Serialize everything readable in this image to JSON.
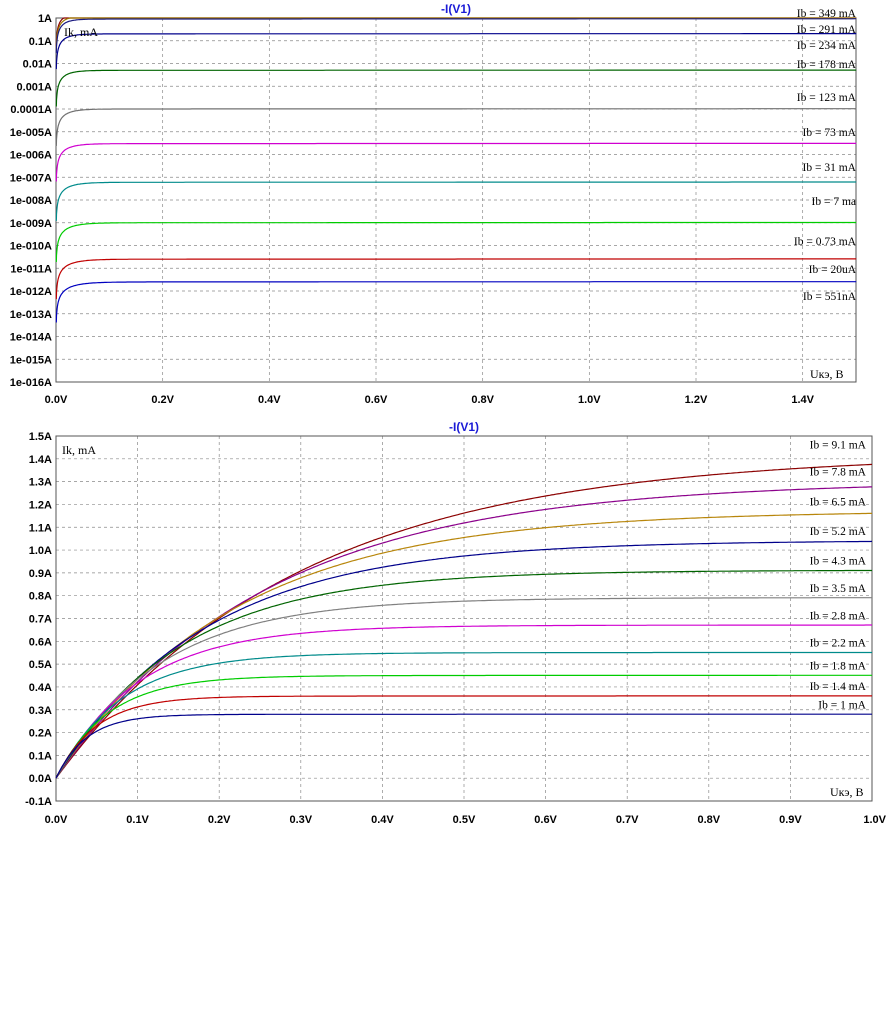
{
  "chart_data": [
    {
      "type": "line",
      "title": "-I(V1)",
      "ylabel": "Ik, mA",
      "xlabel": "Uкэ, В",
      "x_axis": {
        "range": [
          0.0,
          1.5
        ],
        "ticks": [
          0.0,
          0.2,
          0.4,
          0.6,
          0.8,
          1.0,
          1.2,
          1.4
        ],
        "tick_labels": [
          "0.0V",
          "0.2V",
          "0.4V",
          "0.6V",
          "0.8V",
          "1.0V",
          "1.2V",
          "1.4V"
        ]
      },
      "y_axis": {
        "scale": "log",
        "range": [
          1e-16,
          1
        ],
        "tick_labels": [
          "1A",
          "0.1A",
          "0.01A",
          "0.001A",
          "0.0001A",
          "1e-005A",
          "1e-006A",
          "1e-007A",
          "1e-008A",
          "1e-009A",
          "1e-010A",
          "1e-011A",
          "1e-012A",
          "1e-013A",
          "1e-014A",
          "1e-015A",
          "1e-016A"
        ]
      },
      "grid": true,
      "series": [
        {
          "name": "Ib = 349 mA",
          "color": "#8b0000",
          "sat": 1.42
        },
        {
          "name": "Ib = 291 mA",
          "color": "#a07a00",
          "sat": 1.17
        },
        {
          "name": "Ib = 234 mA",
          "color": "#1a1a80",
          "sat": 0.9
        },
        {
          "name": "Ib = 178 mA",
          "color": "#00008b",
          "sat": 0.2
        },
        {
          "name": "Ib = 123 mA",
          "color": "#006400",
          "sat": 0.005
        },
        {
          "name": "Ib = 73 mA",
          "color": "#707070",
          "sat": 0.0001
        },
        {
          "name": "Ib = 31 mA",
          "color": "#d000d0",
          "sat": 3e-06
        },
        {
          "name": "Ib = 7 ma",
          "color": "#008b8b",
          "sat": 6e-08
        },
        {
          "name": "Ib = 0.73 mA",
          "color": "#00cc00",
          "sat": 1e-09
        },
        {
          "name": "Ib = 20uA",
          "color": "#c00000",
          "sat": 2.5e-11
        },
        {
          "name": "Ib = 551nA",
          "color": "#0000c0",
          "sat": 2.5e-12
        }
      ]
    },
    {
      "type": "line",
      "title": "-I(V1)",
      "ylabel": "Ik, mA",
      "xlabel": "Uкэ, В",
      "x_axis": {
        "range": [
          0.0,
          1.0
        ],
        "ticks": [
          0.0,
          0.1,
          0.2,
          0.3,
          0.4,
          0.5,
          0.6,
          0.7,
          0.8,
          0.9,
          1.0
        ],
        "tick_labels": [
          "0.0V",
          "0.1V",
          "0.2V",
          "0.3V",
          "0.4V",
          "0.5V",
          "0.6V",
          "0.7V",
          "0.8V",
          "0.9V",
          "1.0V"
        ]
      },
      "y_axis": {
        "range": [
          -0.1,
          1.5
        ],
        "ticks": [
          1.5,
          1.4,
          1.3,
          1.2,
          1.1,
          1.0,
          0.9,
          0.8,
          0.7,
          0.6,
          0.5,
          0.4,
          0.3,
          0.2,
          0.1,
          0.0,
          -0.1
        ],
        "tick_labels": [
          "1.5A",
          "1.4A",
          "1.3A",
          "1.2A",
          "1.1A",
          "1.0A",
          "0.9A",
          "0.8A",
          "0.7A",
          "0.6A",
          "0.5A",
          "0.4A",
          "0.3A",
          "0.2A",
          "0.1A",
          "0.0A",
          "-0.1A"
        ]
      },
      "grid": true,
      "series": [
        {
          "name": "Ib = 9.1 mA",
          "color": "#8b0000",
          "sat": 1.42
        },
        {
          "name": "Ib = 7.8 mA",
          "color": "#8b008b",
          "sat": 1.3
        },
        {
          "name": "Ib = 6.5 mA",
          "color": "#b8860b",
          "sat": 1.17
        },
        {
          "name": "Ib = 5.2 mA",
          "color": "#00008b",
          "sat": 1.04
        },
        {
          "name": "Ib = 4.3 mA",
          "color": "#006400",
          "sat": 0.91
        },
        {
          "name": "Ib = 3.5 mA",
          "color": "#808080",
          "sat": 0.79
        },
        {
          "name": "Ib = 2.8 mA",
          "color": "#d000d0",
          "sat": 0.67
        },
        {
          "name": "Ib = 2.2 mA",
          "color": "#008b8b",
          "sat": 0.55
        },
        {
          "name": "Ib = 1.8 mA",
          "color": "#00cc00",
          "sat": 0.45
        },
        {
          "name": "Ib = 1.4 mA",
          "color": "#c00000",
          "sat": 0.36
        },
        {
          "name": "Ib = 1 mA",
          "color": "#00008b",
          "sat": 0.28
        }
      ]
    }
  ]
}
